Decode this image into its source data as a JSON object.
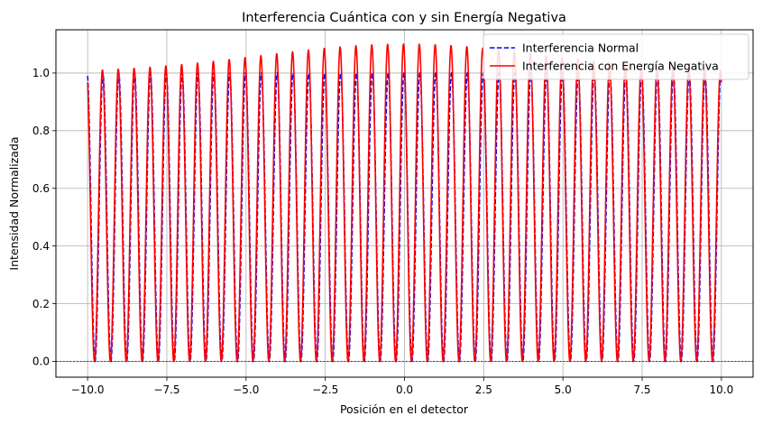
{
  "chart_data": {
    "type": "line",
    "title": "Interferencia Cuántica con y sin Energía Negativa",
    "xlabel": "Posición en el detector",
    "ylabel": "Intensidad Normalizada",
    "xlim": [
      -11.0,
      11.0
    ],
    "ylim": [
      -0.055,
      1.15
    ],
    "xticks": [
      -10.0,
      -7.5,
      -5.0,
      -2.5,
      0.0,
      2.5,
      5.0,
      7.5,
      10.0
    ],
    "xtick_labels": [
      "−10.0",
      "−7.5",
      "−5.0",
      "−2.5",
      "0.0",
      "2.5",
      "5.0",
      "7.5",
      "10.0"
    ],
    "yticks": [
      0.0,
      0.2,
      0.4,
      0.6,
      0.8,
      1.0
    ],
    "ytick_labels": [
      "0.0",
      "0.2",
      "0.4",
      "0.6",
      "0.8",
      "1.0"
    ],
    "grid": true,
    "legend_position": "top-right",
    "reference_line": {
      "y": 0.0,
      "style": "dashed",
      "color": "#000000"
    },
    "series": [
      {
        "name": "Interferencia Normal",
        "color": "#0000ff",
        "style": "dashed",
        "x_range": [
          -10.0,
          10.0
        ],
        "fringes": 40,
        "peak_y": 1.0,
        "min_y": 0.0,
        "y_at_start": 0.99
      },
      {
        "name": "Interferencia con Energía Negativa",
        "color": "#ff0000",
        "style": "solid",
        "x_range": [
          -10.0,
          10.0
        ],
        "fringes": 40,
        "peak_y_at_edges": 1.0,
        "peak_y_at_center": 1.1,
        "min_y": 0.0,
        "y_at_start": 0.96
      }
    ]
  }
}
